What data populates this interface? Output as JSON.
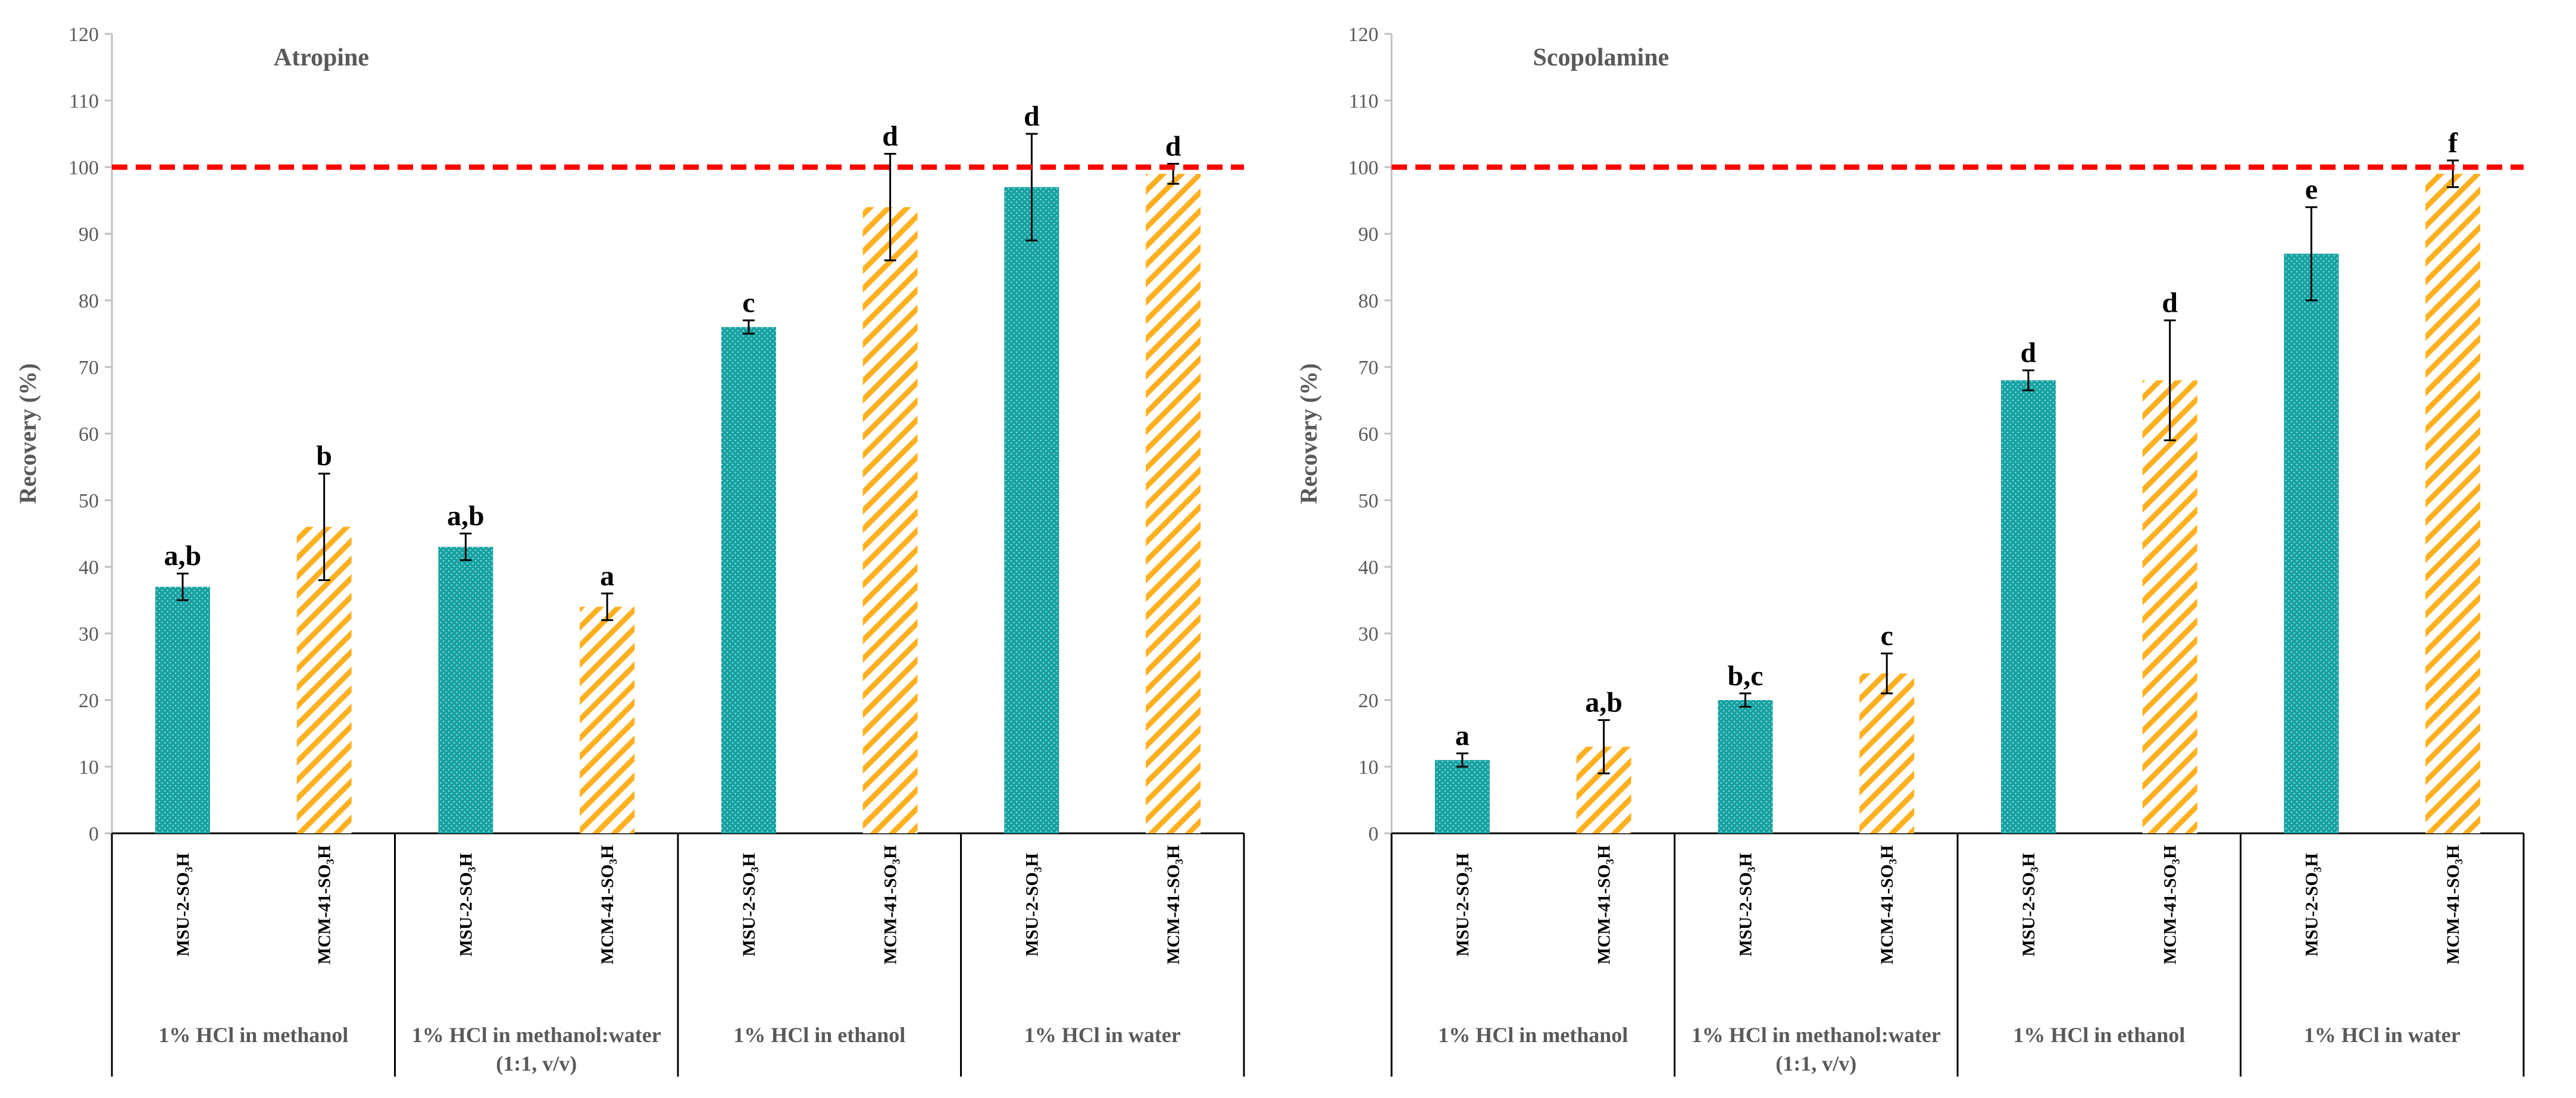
{
  "chart_data": [
    {
      "type": "bar",
      "title": "Atropine",
      "ylabel": "Recovery (%)",
      "ylim": [
        0,
        120
      ],
      "ytick_step": 10,
      "reference_line": 100,
      "groups": [
        "1% HCl in methanol",
        "1% HCl in methanol:water\n(1:1, v/v)",
        "1% HCl in ethanol",
        "1% HCl in water"
      ],
      "series": [
        {
          "name": "MSU-2-SO₃H",
          "color": "#17a2a2",
          "pattern": "dots",
          "values": [
            37,
            43,
            76,
            97
          ],
          "errors": [
            2,
            2,
            1,
            8
          ],
          "letters": [
            "a,b",
            "a,b",
            "c",
            "d"
          ]
        },
        {
          "name": "MCM-41-SO₃H",
          "color": "#ffb020",
          "pattern": "hatch",
          "values": [
            46,
            34,
            94,
            99
          ],
          "errors": [
            8,
            2,
            8,
            1.5
          ],
          "letters": [
            "b",
            "a",
            "d",
            "d"
          ]
        }
      ]
    },
    {
      "type": "bar",
      "title": "Scopolamine",
      "ylabel": "Recovery (%)",
      "ylim": [
        0,
        120
      ],
      "ytick_step": 10,
      "reference_line": 100,
      "groups": [
        "1% HCl in methanol",
        "1% HCl in methanol:water\n(1:1, v/v)",
        "1% HCl in ethanol",
        "1% HCl in water"
      ],
      "series": [
        {
          "name": "MSU-2-SO₃H",
          "color": "#17a2a2",
          "pattern": "dots",
          "values": [
            11,
            20,
            68,
            87
          ],
          "errors": [
            1,
            1,
            1.5,
            7
          ],
          "letters": [
            "a",
            "b,c",
            "d",
            "e"
          ]
        },
        {
          "name": "MCM-41-SO₃H",
          "color": "#ffb020",
          "pattern": "hatch",
          "values": [
            13,
            24,
            68,
            99
          ],
          "errors": [
            4,
            3,
            9,
            2
          ],
          "letters": [
            "a,b",
            "c",
            "d",
            "f"
          ]
        }
      ]
    }
  ]
}
